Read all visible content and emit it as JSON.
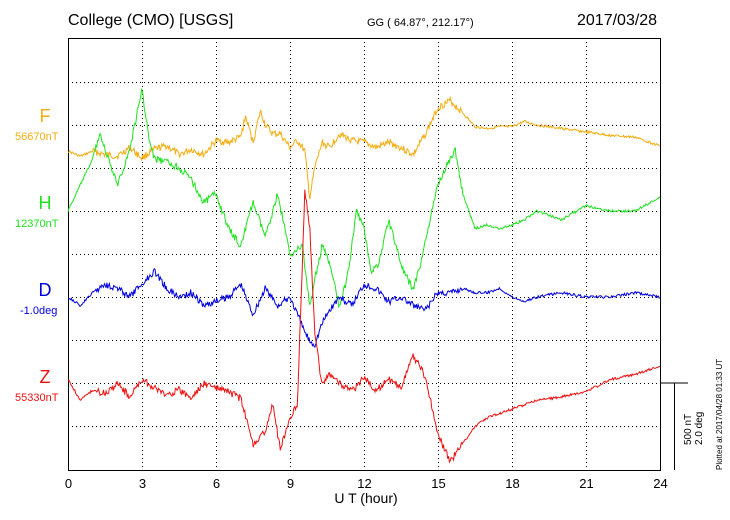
{
  "header": {
    "station": "College (CMO)  [USGS]",
    "coords": "GG ( 64.87°, 212.17°)",
    "date": "2017/03/28"
  },
  "scale": {
    "nt": "500 nT",
    "deg": "2.0 deg"
  },
  "plotted_note": "Plotted at 2017/04/28 01:33 UT",
  "chart_data": {
    "type": "line",
    "xlabel": "U T (hour)",
    "xlim": [
      0,
      24
    ],
    "xticks": [
      "0",
      "3",
      "6",
      "9",
      "12",
      "15",
      "18",
      "21",
      "24"
    ],
    "grid": true,
    "series": [
      {
        "name": "F",
        "baseline": "56670nT",
        "color": "#f2ad10",
        "x": [
          0,
          0.5,
          1,
          1.5,
          2,
          2.5,
          3,
          3.5,
          4,
          4.5,
          5,
          5.5,
          6,
          6.5,
          7,
          7.2,
          7.5,
          7.8,
          8,
          8.3,
          8.6,
          9,
          9.3,
          9.6,
          9.8,
          10,
          10.3,
          10.6,
          11,
          11.5,
          12,
          12.5,
          13,
          13.5,
          14,
          14.5,
          15,
          15.5,
          16,
          16.5,
          17,
          17.5,
          18,
          18.5,
          19,
          20,
          21,
          22,
          23,
          24
        ],
        "offset": [
          -150,
          -180,
          -150,
          -170,
          -180,
          -130,
          -190,
          -140,
          -120,
          -170,
          -140,
          -170,
          -90,
          -100,
          -70,
          50,
          -100,
          80,
          0,
          -50,
          -50,
          -130,
          -90,
          -150,
          -420,
          -250,
          -100,
          -130,
          -50,
          -90,
          -100,
          -130,
          -100,
          -130,
          -170,
          -50,
          100,
          140,
          70,
          -10,
          -20,
          -10,
          -10,
          20,
          0,
          -20,
          -40,
          -60,
          -70,
          -120
        ]
      },
      {
        "name": "H",
        "baseline": "12370nT",
        "color": "#1fe21f",
        "x": [
          0,
          0.5,
          1,
          1.3,
          1.5,
          2,
          2.5,
          3,
          3.3,
          3.5,
          4,
          4.5,
          5,
          5.5,
          6,
          6.5,
          7,
          7.5,
          8,
          8.5,
          9,
          9.5,
          9.8,
          10,
          10.3,
          10.6,
          11,
          11.3,
          11.7,
          12,
          12.3,
          12.6,
          13,
          13.3,
          13.6,
          14,
          14.3,
          14.6,
          15,
          15.3,
          15.7,
          16,
          16.5,
          17,
          17.5,
          18,
          18.5,
          19,
          20,
          21,
          22,
          23,
          24
        ],
        "offset": [
          0,
          150,
          300,
          450,
          350,
          150,
          350,
          700,
          400,
          300,
          280,
          250,
          180,
          50,
          100,
          -100,
          -200,
          50,
          -150,
          100,
          -250,
          -200,
          -550,
          -400,
          -200,
          -300,
          -550,
          -400,
          0,
          -100,
          -350,
          -300,
          -50,
          -200,
          -350,
          -450,
          -300,
          -100,
          150,
          250,
          350,
          100,
          -100,
          -80,
          -100,
          -80,
          -50,
          0,
          -50,
          30,
          0,
          0,
          80
        ]
      },
      {
        "name": "D",
        "baseline": "-1.0deg",
        "color": "#0000dd",
        "x": [
          0,
          0.5,
          1,
          1.5,
          2,
          2.5,
          3,
          3.5,
          4,
          4.5,
          5,
          5.5,
          6,
          6.5,
          7,
          7.5,
          8,
          8.5,
          9,
          9.3,
          9.6,
          9.8,
          10,
          10.3,
          10.6,
          11,
          11.5,
          12,
          12.5,
          13,
          13.5,
          14,
          14.5,
          15,
          15.5,
          16,
          16.5,
          17,
          17.5,
          18,
          18.5,
          19,
          20,
          21,
          22,
          23,
          24
        ],
        "offset": [
          0,
          -0.2,
          0.1,
          0.3,
          0.2,
          0,
          0.3,
          0.6,
          0.2,
          0,
          0.1,
          -0.2,
          -0.1,
          0,
          0.3,
          -0.4,
          0.2,
          -0.2,
          0,
          -0.4,
          -0.8,
          -1.0,
          -1.1,
          -0.6,
          -0.3,
          0,
          -0.2,
          0.3,
          0.2,
          -0.1,
          0,
          -0.2,
          -0.3,
          0.1,
          0.1,
          0.2,
          0.1,
          0.1,
          0.2,
          0,
          -0.1,
          0,
          0.1,
          0,
          0,
          0.1,
          0
        ]
      },
      {
        "name": "Z",
        "baseline": "55330nT",
        "color": "#ee1111",
        "x": [
          0,
          0.5,
          1,
          1.5,
          2,
          2.5,
          3,
          3.5,
          4,
          4.5,
          5,
          5.5,
          6,
          6.5,
          7,
          7.5,
          8,
          8.3,
          8.6,
          9,
          9.3,
          9.6,
          9.8,
          10,
          10.3,
          10.6,
          11,
          11.5,
          12,
          12.5,
          13,
          13.5,
          14,
          14.5,
          15,
          15.5,
          16,
          16.5,
          17,
          18,
          19,
          20,
          21,
          22,
          23,
          24
        ],
        "offset": [
          20,
          -100,
          -40,
          -60,
          0,
          -80,
          20,
          -30,
          -70,
          -40,
          -90,
          0,
          -30,
          -50,
          -90,
          -350,
          -280,
          -120,
          -380,
          -200,
          -120,
          1100,
          900,
          300,
          -20,
          60,
          0,
          -50,
          30,
          -40,
          20,
          -20,
          160,
          30,
          -300,
          -450,
          -350,
          -250,
          -200,
          -150,
          -100,
          -80,
          -50,
          20,
          50,
          100
        ]
      }
    ]
  }
}
